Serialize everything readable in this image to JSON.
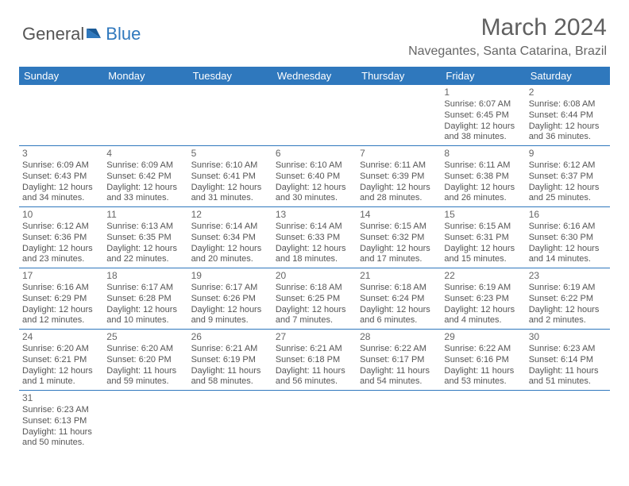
{
  "logo": {
    "text1": "General",
    "text2": "Blue"
  },
  "title": "March 2024",
  "location": "Navegantes, Santa Catarina, Brazil",
  "colors": {
    "header_bg": "#2f78bd",
    "header_fg": "#ffffff",
    "text": "#555555",
    "border": "#2f78bd"
  },
  "dayNames": [
    "Sunday",
    "Monday",
    "Tuesday",
    "Wednesday",
    "Thursday",
    "Friday",
    "Saturday"
  ],
  "weeks": [
    [
      null,
      null,
      null,
      null,
      null,
      {
        "n": "1",
        "sr": "Sunrise: 6:07 AM",
        "ss": "Sunset: 6:45 PM",
        "dl": "Daylight: 12 hours and 38 minutes."
      },
      {
        "n": "2",
        "sr": "Sunrise: 6:08 AM",
        "ss": "Sunset: 6:44 PM",
        "dl": "Daylight: 12 hours and 36 minutes."
      }
    ],
    [
      {
        "n": "3",
        "sr": "Sunrise: 6:09 AM",
        "ss": "Sunset: 6:43 PM",
        "dl": "Daylight: 12 hours and 34 minutes."
      },
      {
        "n": "4",
        "sr": "Sunrise: 6:09 AM",
        "ss": "Sunset: 6:42 PM",
        "dl": "Daylight: 12 hours and 33 minutes."
      },
      {
        "n": "5",
        "sr": "Sunrise: 6:10 AM",
        "ss": "Sunset: 6:41 PM",
        "dl": "Daylight: 12 hours and 31 minutes."
      },
      {
        "n": "6",
        "sr": "Sunrise: 6:10 AM",
        "ss": "Sunset: 6:40 PM",
        "dl": "Daylight: 12 hours and 30 minutes."
      },
      {
        "n": "7",
        "sr": "Sunrise: 6:11 AM",
        "ss": "Sunset: 6:39 PM",
        "dl": "Daylight: 12 hours and 28 minutes."
      },
      {
        "n": "8",
        "sr": "Sunrise: 6:11 AM",
        "ss": "Sunset: 6:38 PM",
        "dl": "Daylight: 12 hours and 26 minutes."
      },
      {
        "n": "9",
        "sr": "Sunrise: 6:12 AM",
        "ss": "Sunset: 6:37 PM",
        "dl": "Daylight: 12 hours and 25 minutes."
      }
    ],
    [
      {
        "n": "10",
        "sr": "Sunrise: 6:12 AM",
        "ss": "Sunset: 6:36 PM",
        "dl": "Daylight: 12 hours and 23 minutes."
      },
      {
        "n": "11",
        "sr": "Sunrise: 6:13 AM",
        "ss": "Sunset: 6:35 PM",
        "dl": "Daylight: 12 hours and 22 minutes."
      },
      {
        "n": "12",
        "sr": "Sunrise: 6:14 AM",
        "ss": "Sunset: 6:34 PM",
        "dl": "Daylight: 12 hours and 20 minutes."
      },
      {
        "n": "13",
        "sr": "Sunrise: 6:14 AM",
        "ss": "Sunset: 6:33 PM",
        "dl": "Daylight: 12 hours and 18 minutes."
      },
      {
        "n": "14",
        "sr": "Sunrise: 6:15 AM",
        "ss": "Sunset: 6:32 PM",
        "dl": "Daylight: 12 hours and 17 minutes."
      },
      {
        "n": "15",
        "sr": "Sunrise: 6:15 AM",
        "ss": "Sunset: 6:31 PM",
        "dl": "Daylight: 12 hours and 15 minutes."
      },
      {
        "n": "16",
        "sr": "Sunrise: 6:16 AM",
        "ss": "Sunset: 6:30 PM",
        "dl": "Daylight: 12 hours and 14 minutes."
      }
    ],
    [
      {
        "n": "17",
        "sr": "Sunrise: 6:16 AM",
        "ss": "Sunset: 6:29 PM",
        "dl": "Daylight: 12 hours and 12 minutes."
      },
      {
        "n": "18",
        "sr": "Sunrise: 6:17 AM",
        "ss": "Sunset: 6:28 PM",
        "dl": "Daylight: 12 hours and 10 minutes."
      },
      {
        "n": "19",
        "sr": "Sunrise: 6:17 AM",
        "ss": "Sunset: 6:26 PM",
        "dl": "Daylight: 12 hours and 9 minutes."
      },
      {
        "n": "20",
        "sr": "Sunrise: 6:18 AM",
        "ss": "Sunset: 6:25 PM",
        "dl": "Daylight: 12 hours and 7 minutes."
      },
      {
        "n": "21",
        "sr": "Sunrise: 6:18 AM",
        "ss": "Sunset: 6:24 PM",
        "dl": "Daylight: 12 hours and 6 minutes."
      },
      {
        "n": "22",
        "sr": "Sunrise: 6:19 AM",
        "ss": "Sunset: 6:23 PM",
        "dl": "Daylight: 12 hours and 4 minutes."
      },
      {
        "n": "23",
        "sr": "Sunrise: 6:19 AM",
        "ss": "Sunset: 6:22 PM",
        "dl": "Daylight: 12 hours and 2 minutes."
      }
    ],
    [
      {
        "n": "24",
        "sr": "Sunrise: 6:20 AM",
        "ss": "Sunset: 6:21 PM",
        "dl": "Daylight: 12 hours and 1 minute."
      },
      {
        "n": "25",
        "sr": "Sunrise: 6:20 AM",
        "ss": "Sunset: 6:20 PM",
        "dl": "Daylight: 11 hours and 59 minutes."
      },
      {
        "n": "26",
        "sr": "Sunrise: 6:21 AM",
        "ss": "Sunset: 6:19 PM",
        "dl": "Daylight: 11 hours and 58 minutes."
      },
      {
        "n": "27",
        "sr": "Sunrise: 6:21 AM",
        "ss": "Sunset: 6:18 PM",
        "dl": "Daylight: 11 hours and 56 minutes."
      },
      {
        "n": "28",
        "sr": "Sunrise: 6:22 AM",
        "ss": "Sunset: 6:17 PM",
        "dl": "Daylight: 11 hours and 54 minutes."
      },
      {
        "n": "29",
        "sr": "Sunrise: 6:22 AM",
        "ss": "Sunset: 6:16 PM",
        "dl": "Daylight: 11 hours and 53 minutes."
      },
      {
        "n": "30",
        "sr": "Sunrise: 6:23 AM",
        "ss": "Sunset: 6:14 PM",
        "dl": "Daylight: 11 hours and 51 minutes."
      }
    ],
    [
      {
        "n": "31",
        "sr": "Sunrise: 6:23 AM",
        "ss": "Sunset: 6:13 PM",
        "dl": "Daylight: 11 hours and 50 minutes."
      },
      null,
      null,
      null,
      null,
      null,
      null
    ]
  ]
}
